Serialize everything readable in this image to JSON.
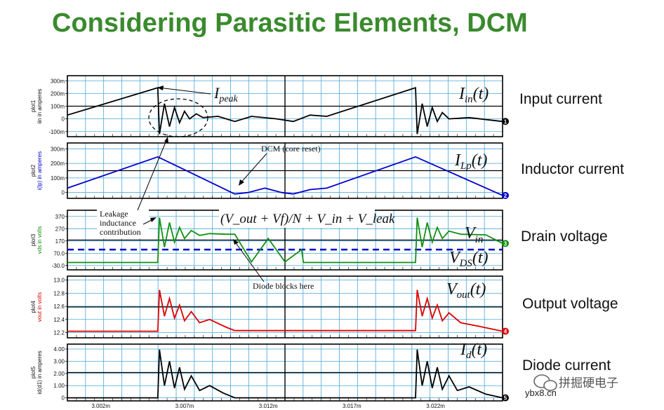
{
  "title": "Considering Parasitic Elements, DCM",
  "chart_data": {
    "type": "line",
    "x": {
      "ticks": [
        "3.002m",
        "3.007m",
        "3.012m",
        "3.017m",
        "3.022m"
      ],
      "tick_values": [
        3.002,
        3.007,
        3.012,
        3.017,
        3.022
      ],
      "xlim": [
        3.0,
        3.026
      ],
      "unit": "m"
    },
    "plots": [
      {
        "id": "plot1",
        "ylabel": "plot1\nIin in amperes",
        "ylabel_line1": "plot1",
        "ylabel_line2": "iin in amperes",
        "y_ticks": [
          "300m",
          "200m",
          "100m",
          "0",
          "-100m"
        ],
        "y_tick_values": [
          0.3,
          0.2,
          0.1,
          0,
          -0.1
        ],
        "ylim": [
          -0.14,
          0.34
        ],
        "color": "#000000",
        "marker": "1",
        "series_label": "I_in(t)",
        "side_label": "Input current",
        "points": [
          [
            3.0,
            0.03
          ],
          [
            3.0054,
            0.245
          ],
          [
            3.0055,
            -0.12
          ],
          [
            3.0058,
            0.12
          ],
          [
            3.0061,
            -0.06
          ],
          [
            3.0064,
            0.09
          ],
          [
            3.0067,
            -0.03
          ],
          [
            3.007,
            0.06
          ],
          [
            3.0073,
            0.0
          ],
          [
            3.0077,
            0.04
          ],
          [
            3.0081,
            0.01
          ],
          [
            3.009,
            0.02
          ],
          [
            3.01,
            -0.02
          ],
          [
            3.011,
            0.02
          ],
          [
            3.0125,
            0.0
          ],
          [
            3.0135,
            -0.02
          ],
          [
            3.0145,
            0.03
          ],
          [
            3.0155,
            0.02
          ],
          [
            3.0208,
            0.245
          ],
          [
            3.0209,
            -0.12
          ],
          [
            3.0212,
            0.12
          ],
          [
            3.0215,
            -0.06
          ],
          [
            3.0218,
            0.09
          ],
          [
            3.0221,
            -0.02
          ],
          [
            3.0224,
            0.05
          ],
          [
            3.0228,
            0.0
          ],
          [
            3.024,
            0.01
          ],
          [
            3.026,
            -0.02
          ]
        ]
      },
      {
        "id": "plot2",
        "ylabel_line1": "plot2",
        "ylabel_line2": "i(lp) in amperes",
        "y_ticks": [
          "300m",
          "200m",
          "100m",
          "0"
        ],
        "y_tick_values": [
          0.3,
          0.2,
          0.1,
          0
        ],
        "ylim": [
          -0.04,
          0.34
        ],
        "color": "#0000cc",
        "marker": "2",
        "series_label": "I_Lp(t)",
        "side_label": "Inductor current",
        "points": [
          [
            3.0,
            0.03
          ],
          [
            3.0054,
            0.245
          ],
          [
            3.01,
            -0.01
          ],
          [
            3.0108,
            0.0
          ],
          [
            3.0118,
            0.03
          ],
          [
            3.0128,
            0.0
          ],
          [
            3.0135,
            -0.01
          ],
          [
            3.0145,
            0.02
          ],
          [
            3.0155,
            0.03
          ],
          [
            3.0208,
            0.245
          ],
          [
            3.026,
            -0.02
          ]
        ]
      },
      {
        "id": "plot3",
        "ylabel_line1": "plot3",
        "ylabel_line2": "vds in volts",
        "y_ticks": [
          "370",
          "270",
          "170",
          "70.0",
          "-30.0"
        ],
        "y_tick_values": [
          370,
          270,
          170,
          70,
          -30
        ],
        "ylim": [
          -65,
          420
        ],
        "color": "#109010",
        "marker": "3",
        "series_label": "V_DS(t)",
        "side_label": "Drain voltage",
        "dashed_level": {
          "label": "V_in",
          "value": 100,
          "color": "#0000cc"
        },
        "annotation": "(V_out + Vf)/N + V_in + V_leak",
        "points": [
          [
            3.0,
            -5
          ],
          [
            3.0054,
            -5
          ],
          [
            3.0055,
            360
          ],
          [
            3.0058,
            120
          ],
          [
            3.0061,
            320
          ],
          [
            3.0064,
            160
          ],
          [
            3.0067,
            280
          ],
          [
            3.007,
            190
          ],
          [
            3.0074,
            255
          ],
          [
            3.0079,
            215
          ],
          [
            3.0085,
            230
          ],
          [
            3.0095,
            225
          ],
          [
            3.01,
            225
          ],
          [
            3.011,
            0
          ],
          [
            3.012,
            190
          ],
          [
            3.013,
            0
          ],
          [
            3.014,
            100
          ],
          [
            3.0141,
            -5
          ],
          [
            3.0208,
            -5
          ],
          [
            3.0209,
            360
          ],
          [
            3.0212,
            120
          ],
          [
            3.0215,
            320
          ],
          [
            3.0218,
            160
          ],
          [
            3.0221,
            280
          ],
          [
            3.0224,
            190
          ],
          [
            3.0228,
            250
          ],
          [
            3.0235,
            225
          ],
          [
            3.025,
            220
          ],
          [
            3.026,
            150
          ]
        ]
      },
      {
        "id": "plot4",
        "ylabel_line1": "plot4",
        "ylabel_line2": "vout in volts",
        "y_ticks": [
          "13.0",
          "12.8",
          "12.6",
          "12.4",
          "12.2"
        ],
        "y_tick_values": [
          13.0,
          12.8,
          12.6,
          12.4,
          12.2
        ],
        "ylim": [
          12.12,
          13.06
        ],
        "color": "#dd0000",
        "marker": "4",
        "series_label": "V_out(t)",
        "side_label": "Output voltage",
        "points": [
          [
            3.0,
            12.22
          ],
          [
            3.0054,
            12.22
          ],
          [
            3.0055,
            12.85
          ],
          [
            3.0058,
            12.45
          ],
          [
            3.0061,
            12.72
          ],
          [
            3.0064,
            12.42
          ],
          [
            3.0067,
            12.62
          ],
          [
            3.007,
            12.38
          ],
          [
            3.0074,
            12.52
          ],
          [
            3.0079,
            12.35
          ],
          [
            3.0085,
            12.4
          ],
          [
            3.0095,
            12.28
          ],
          [
            3.01,
            12.23
          ],
          [
            3.0208,
            12.23
          ],
          [
            3.0209,
            12.85
          ],
          [
            3.0212,
            12.45
          ],
          [
            3.0215,
            12.72
          ],
          [
            3.0218,
            12.42
          ],
          [
            3.0221,
            12.62
          ],
          [
            3.0224,
            12.38
          ],
          [
            3.0228,
            12.5
          ],
          [
            3.0235,
            12.35
          ],
          [
            3.0245,
            12.3
          ],
          [
            3.026,
            12.22
          ]
        ]
      },
      {
        "id": "plot5",
        "ylabel_line1": "plot5",
        "ylabel_line2": "id(d1) in amperes",
        "y_ticks": [
          "4.00",
          "3.00",
          "2.00",
          "1.00",
          "0"
        ],
        "y_tick_values": [
          4,
          3,
          2,
          1,
          0
        ],
        "ylim": [
          -0.25,
          4.4
        ],
        "color": "#000000",
        "marker": "5",
        "series_label": "I_d(t)",
        "side_label": "Diode current",
        "points": [
          [
            3.0,
            0.0
          ],
          [
            3.0054,
            0.0
          ],
          [
            3.0055,
            3.95
          ],
          [
            3.0058,
            1.0
          ],
          [
            3.0061,
            3.0
          ],
          [
            3.0064,
            0.8
          ],
          [
            3.0067,
            2.5
          ],
          [
            3.007,
            0.7
          ],
          [
            3.0074,
            1.8
          ],
          [
            3.0079,
            0.6
          ],
          [
            3.0085,
            1.0
          ],
          [
            3.0093,
            0.4
          ],
          [
            3.01,
            0.0
          ],
          [
            3.0208,
            0.0
          ],
          [
            3.0209,
            3.95
          ],
          [
            3.0212,
            1.0
          ],
          [
            3.0215,
            3.0
          ],
          [
            3.0218,
            0.8
          ],
          [
            3.0221,
            2.5
          ],
          [
            3.0224,
            0.7
          ],
          [
            3.0228,
            1.8
          ],
          [
            3.0233,
            0.6
          ],
          [
            3.024,
            0.9
          ],
          [
            3.025,
            0.3
          ],
          [
            3.026,
            0.0
          ]
        ]
      }
    ],
    "annotations": {
      "ipeak": "I_peak",
      "dcm": "DCM (core reset)",
      "leakage_line1": "Leakage",
      "leakage_line2": "inductance",
      "leakage_line3": "contribution",
      "diode": "Diode blocks here"
    }
  },
  "watermark": {
    "text": "拼掘硬电子",
    "url": "ybx8.cn"
  }
}
